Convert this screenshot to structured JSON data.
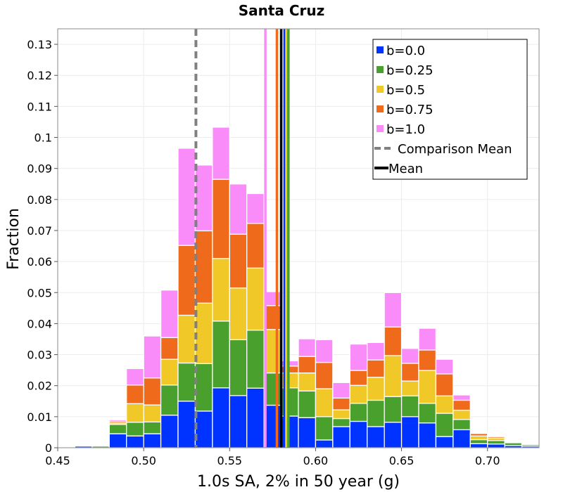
{
  "chart_data": {
    "type": "bar",
    "stacked": true,
    "title": "Santa Cruz",
    "xlabel": "1.0s SA, 2% in 50 year (g)",
    "ylabel": "Fraction",
    "xlim": [
      0.45,
      0.73
    ],
    "ylim": [
      0,
      0.135
    ],
    "grid": true,
    "legend_position": "top-right",
    "bin_width": 0.01,
    "x_ticks": [
      0.45,
      0.5,
      0.55,
      0.6,
      0.65,
      0.7
    ],
    "x_tick_labels": [
      "0.45",
      "0.50",
      "0.55",
      "0.60",
      "0.65",
      "0.70"
    ],
    "y_ticks": [
      0,
      0.01,
      0.02,
      0.03,
      0.04,
      0.05,
      0.06,
      0.07,
      0.08,
      0.09,
      0.1,
      0.11,
      0.12,
      0.13
    ],
    "y_tick_labels": [
      "0",
      "0.01",
      "0.02",
      "0.03",
      "0.04",
      "0.05",
      "0.06",
      "0.07",
      "0.08",
      "0.09",
      "0.1",
      "0.11",
      "0.12",
      "0.13"
    ],
    "bin_starts": [
      0.46,
      0.47,
      0.48,
      0.49,
      0.5,
      0.51,
      0.52,
      0.53,
      0.54,
      0.55,
      0.56,
      0.57,
      0.58,
      0.59,
      0.6,
      0.61,
      0.62,
      0.63,
      0.64,
      0.65,
      0.66,
      0.67,
      0.68,
      0.69,
      0.7,
      0.71,
      0.72
    ],
    "series": [
      {
        "name": "b=0.0",
        "color": "#0033ff",
        "values": [
          0.0005,
          0.0,
          0.0045,
          0.0038,
          0.0045,
          0.0105,
          0.015,
          0.0118,
          0.0193,
          0.0168,
          0.0192,
          0.0137,
          0.0102,
          0.0097,
          0.0025,
          0.0068,
          0.0085,
          0.0068,
          0.0082,
          0.01,
          0.008,
          0.0036,
          0.0058,
          0.0013,
          0.0012,
          0.0007,
          0.0005
        ]
      },
      {
        "name": "b=0.25",
        "color": "#4aa02c",
        "values": [
          0.0,
          0.0005,
          0.003,
          0.0044,
          0.0038,
          0.0097,
          0.0123,
          0.0153,
          0.0215,
          0.018,
          0.0187,
          0.0104,
          0.0091,
          0.0086,
          0.0075,
          0.0026,
          0.0058,
          0.0085,
          0.0083,
          0.0067,
          0.0063,
          0.0075,
          0.0033,
          0.0013,
          0.0011,
          0.0009,
          0.0005
        ]
      },
      {
        "name": "b=0.5",
        "color": "#f0c828",
        "values": [
          0.0,
          0.0,
          0.0005,
          0.006,
          0.0055,
          0.0083,
          0.0154,
          0.0195,
          0.0202,
          0.0167,
          0.02,
          0.014,
          0.0048,
          0.0058,
          0.009,
          0.0028,
          0.0058,
          0.0074,
          0.0132,
          0.0048,
          0.0106,
          0.0056,
          0.003,
          0.0012,
          0.0008,
          0.0003,
          0.0003
        ]
      },
      {
        "name": "b=0.75",
        "color": "#f06a1c",
        "values": [
          0.0,
          0.0,
          0.0005,
          0.006,
          0.0087,
          0.007,
          0.0225,
          0.0233,
          0.0255,
          0.0173,
          0.0144,
          0.0077,
          0.0022,
          0.0053,
          0.0085,
          0.0038,
          0.0048,
          0.0056,
          0.0092,
          0.0057,
          0.0066,
          0.0071,
          0.0032,
          0.0008,
          0.0005,
          0.0002,
          0.0002
        ]
      },
      {
        "name": "b=1.0",
        "color": "#fa8cfa",
        "values": [
          0.0,
          0.0,
          0.0005,
          0.0053,
          0.0135,
          0.0153,
          0.0313,
          0.0212,
          0.0168,
          0.0162,
          0.0096,
          0.0045,
          0.0017,
          0.0057,
          0.0073,
          0.005,
          0.0085,
          0.0056,
          0.0111,
          0.0048,
          0.007,
          0.0047,
          0.0017,
          0.0002,
          0.0002,
          0.0001,
          0.0001
        ]
      }
    ],
    "vertical_lines": [
      {
        "name": "b=1.0 mean",
        "x": 0.5708,
        "color": "#fa8cfa",
        "dashed": false
      },
      {
        "name": "b=0.75 mean",
        "x": 0.5775,
        "color": "#f06a1c",
        "dashed": false
      },
      {
        "name": "Mean",
        "x": 0.58,
        "color": "#000000",
        "dashed": false
      },
      {
        "name": "b=0.0 mean",
        "x": 0.582,
        "color": "#0033ff",
        "dashed": false
      },
      {
        "name": "b=0.5 mean",
        "x": 0.583,
        "color": "#f0c828",
        "dashed": false
      },
      {
        "name": "b=0.25 mean",
        "x": 0.5842,
        "color": "#4aa02c",
        "dashed": false
      },
      {
        "name": "Comparison Mean",
        "x": 0.5304,
        "color": "#808080",
        "dashed": true
      }
    ],
    "legend": [
      {
        "label": "b=0.0",
        "kind": "box",
        "color": "#0033ff"
      },
      {
        "label": "b=0.25",
        "kind": "box",
        "color": "#4aa02c"
      },
      {
        "label": "b=0.5",
        "kind": "box",
        "color": "#f0c828"
      },
      {
        "label": "b=0.75",
        "kind": "box",
        "color": "#f06a1c"
      },
      {
        "label": "b=1.0",
        "kind": "box",
        "color": "#fa8cfa"
      },
      {
        "label": "Comparison Mean",
        "kind": "dash",
        "color": "#808080"
      },
      {
        "label": "Mean",
        "kind": "line",
        "color": "#000000"
      }
    ]
  }
}
